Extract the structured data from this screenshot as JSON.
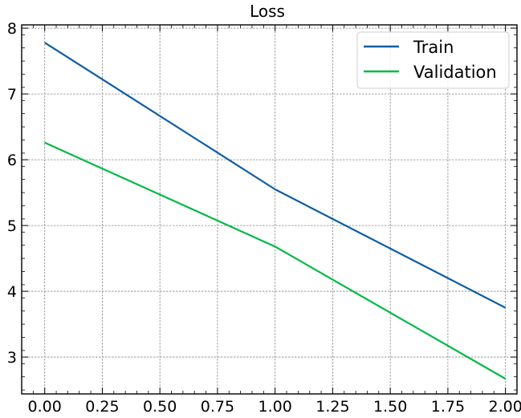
{
  "chart_data": {
    "type": "line",
    "title": "Loss",
    "xlabel": "",
    "ylabel": "",
    "x": [
      0,
      1,
      2
    ],
    "series": [
      {
        "name": "Train",
        "color": "#0c5da5",
        "values": [
          7.78,
          5.55,
          3.75
        ]
      },
      {
        "name": "Validation",
        "color": "#00b945",
        "values": [
          6.26,
          4.68,
          2.67
        ]
      }
    ],
    "xlim": [
      -0.1,
      2.05
    ],
    "ylim": [
      2.44,
      8.05
    ],
    "x_ticks": [
      0.0,
      0.25,
      0.5,
      0.75,
      1.0,
      1.25,
      1.5,
      1.75,
      2.0
    ],
    "x_tick_labels": [
      "0.00",
      "0.25",
      "0.50",
      "0.75",
      "1.00",
      "1.25",
      "1.50",
      "1.75",
      "2.00"
    ],
    "y_ticks": [
      3,
      4,
      5,
      6,
      7,
      8
    ],
    "y_tick_labels": [
      "3",
      "4",
      "5",
      "6",
      "7",
      "8"
    ],
    "grid": true,
    "legend_position": "top-right"
  }
}
